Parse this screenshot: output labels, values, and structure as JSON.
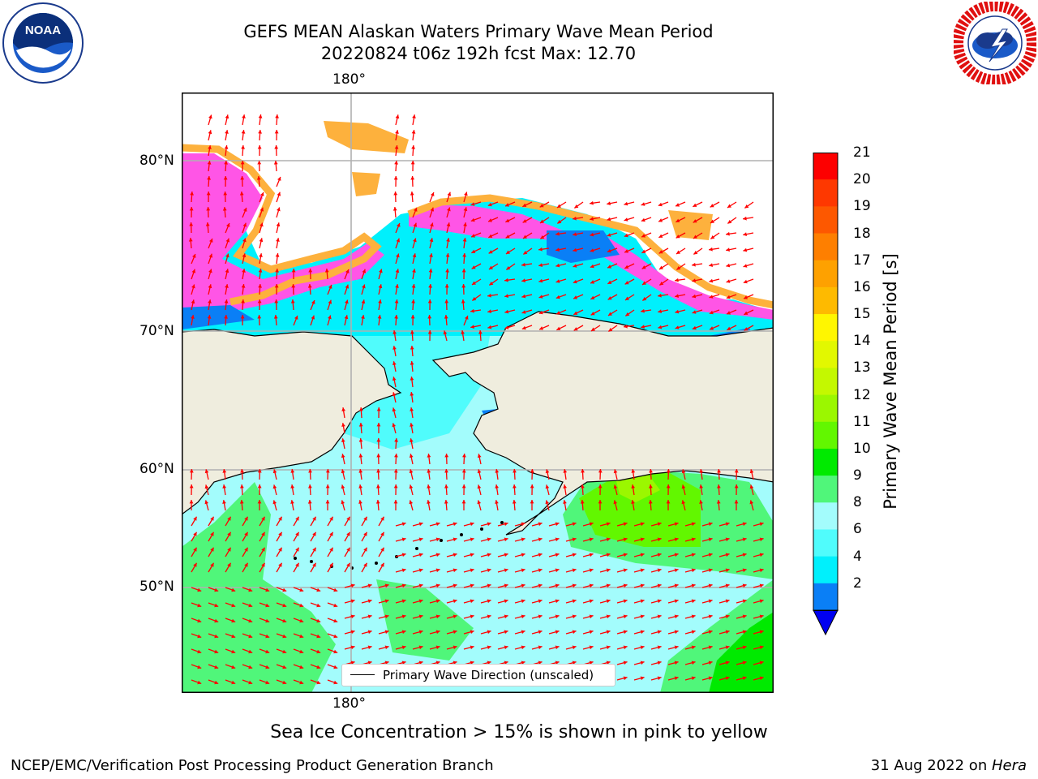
{
  "header": {
    "title_line1": "GEFS MEAN Alaskan Waters Primary Wave Mean Period",
    "title_line2": "20220824 t06z 192h fcst   Max: 12.70"
  },
  "map": {
    "lon_label_top": "180°",
    "lon_label_bottom": "180°",
    "lat_labels": [
      "80°N",
      "70°N",
      "60°N",
      "50°N"
    ],
    "legend_text": "Primary Wave Direction (unscaled)"
  },
  "colorbar": {
    "ticks": [
      "21",
      "20",
      "19",
      "18",
      "17",
      "16",
      "15",
      "14",
      "13",
      "12",
      "11",
      "10",
      "9",
      "8",
      "6",
      "4",
      "2"
    ],
    "label": "Primary Wave Mean Period [s]",
    "colors": [
      "#fd0000",
      "#fe3800",
      "#fd5800",
      "#fe7f00",
      "#fea100",
      "#feba00",
      "#fff600",
      "#e2f800",
      "#c4f800",
      "#9bf700",
      "#62f700",
      "#00ea00",
      "#50f67a",
      "#a3fcfc",
      "#50fcfc",
      "#00f0fc",
      "#0a7ff6"
    ],
    "extend_color": "#0000f0"
  },
  "footer": {
    "note": "Sea Ice Concentration > 15% is shown in pink to yellow",
    "left": "NCEP/EMC/Verification Post Processing Product Generation Branch",
    "right_date": "31 Aug 2022 on ",
    "right_machine": "Hera"
  },
  "logos": {
    "left": "noaa-logo",
    "right": "nws-logo"
  },
  "colors": {
    "land": "#efedde",
    "sea_ice_pink": "#ff55e6",
    "ice_orange": "#fdb13d",
    "arrow": "#ff0000",
    "grid": "#b0b0b0"
  }
}
